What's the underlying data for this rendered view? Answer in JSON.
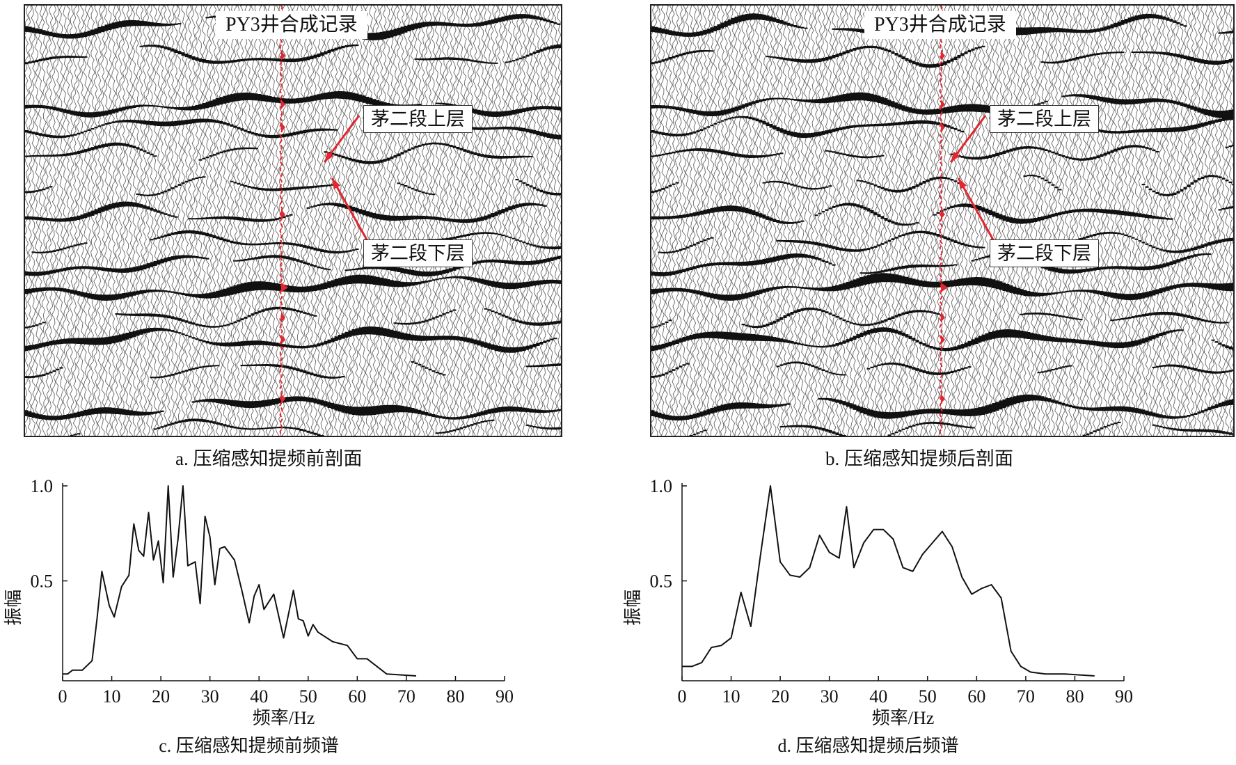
{
  "panels": {
    "a": {
      "well_label": "PY3井合成记录",
      "upper_label": "茅二段上层",
      "lower_label": "茅二段下层",
      "caption": "a. 压缩感知提频前剖面"
    },
    "b": {
      "well_label": "PY3井合成记录",
      "upper_label": "茅二段上层",
      "lower_label": "茅二段下层",
      "caption": "b. 压缩感知提频后剖面"
    }
  },
  "colors": {
    "trace": "#111111",
    "well": "#e3262f",
    "axis": "#111111",
    "line": "#111111"
  },
  "chart_data": [
    {
      "type": "line",
      "caption": "c. 压缩感知提频前频谱",
      "xlabel": "频率/Hz",
      "ylabel": "振幅",
      "xlim": [
        0,
        90
      ],
      "ylim": [
        0,
        1.0
      ],
      "xticks": [
        0,
        10,
        20,
        30,
        40,
        50,
        60,
        70,
        80,
        90
      ],
      "yticks": [
        0.5,
        1.0
      ],
      "ytick_labels": [
        "0.5",
        "1.0"
      ],
      "x": [
        0,
        1,
        2,
        4,
        6,
        7,
        8,
        9.5,
        10.5,
        12,
        13.5,
        14.5,
        15.5,
        16.5,
        17.5,
        18.5,
        19.5,
        20.5,
        21.5,
        22.5,
        23.5,
        24.5,
        25.5,
        27,
        28,
        29,
        30,
        31,
        32,
        33,
        35,
        36.5,
        38,
        39,
        40,
        41,
        43,
        45,
        47,
        48,
        49,
        50,
        51,
        52,
        55,
        58,
        60,
        62,
        66,
        72
      ],
      "y": [
        0.01,
        0.01,
        0.03,
        0.03,
        0.08,
        0.3,
        0.55,
        0.37,
        0.31,
        0.47,
        0.53,
        0.8,
        0.66,
        0.63,
        0.86,
        0.61,
        0.71,
        0.49,
        1.0,
        0.52,
        0.72,
        1.0,
        0.58,
        0.6,
        0.38,
        0.84,
        0.73,
        0.48,
        0.67,
        0.68,
        0.61,
        0.45,
        0.28,
        0.42,
        0.48,
        0.35,
        0.43,
        0.2,
        0.45,
        0.3,
        0.29,
        0.21,
        0.27,
        0.23,
        0.18,
        0.16,
        0.09,
        0.09,
        0.01,
        0.0
      ]
    },
    {
      "type": "line",
      "caption": "d. 压缩感知提频后频谱",
      "xlabel": "频率/Hz",
      "ylabel": "振幅",
      "xlim": [
        0,
        90
      ],
      "ylim": [
        0,
        1.0
      ],
      "xticks": [
        0,
        10,
        20,
        30,
        40,
        50,
        60,
        70,
        80,
        90
      ],
      "yticks": [
        0.5,
        1.0
      ],
      "ytick_labels": [
        "0.5",
        "1.0"
      ],
      "x": [
        0,
        2,
        4,
        6,
        8,
        10,
        12,
        14,
        16,
        18,
        20,
        22,
        24,
        26,
        28,
        30,
        32,
        33.5,
        35,
        37,
        39,
        41,
        43,
        45,
        47,
        49,
        51,
        53,
        55,
        57,
        59,
        61,
        63,
        65,
        67,
        69,
        71,
        74,
        78,
        84
      ],
      "y": [
        0.05,
        0.05,
        0.07,
        0.15,
        0.16,
        0.2,
        0.44,
        0.26,
        0.64,
        1.0,
        0.6,
        0.53,
        0.52,
        0.57,
        0.74,
        0.65,
        0.62,
        0.89,
        0.57,
        0.7,
        0.77,
        0.77,
        0.72,
        0.57,
        0.55,
        0.64,
        0.7,
        0.76,
        0.68,
        0.52,
        0.43,
        0.46,
        0.48,
        0.41,
        0.13,
        0.05,
        0.02,
        0.01,
        0.01,
        0.0
      ]
    }
  ]
}
